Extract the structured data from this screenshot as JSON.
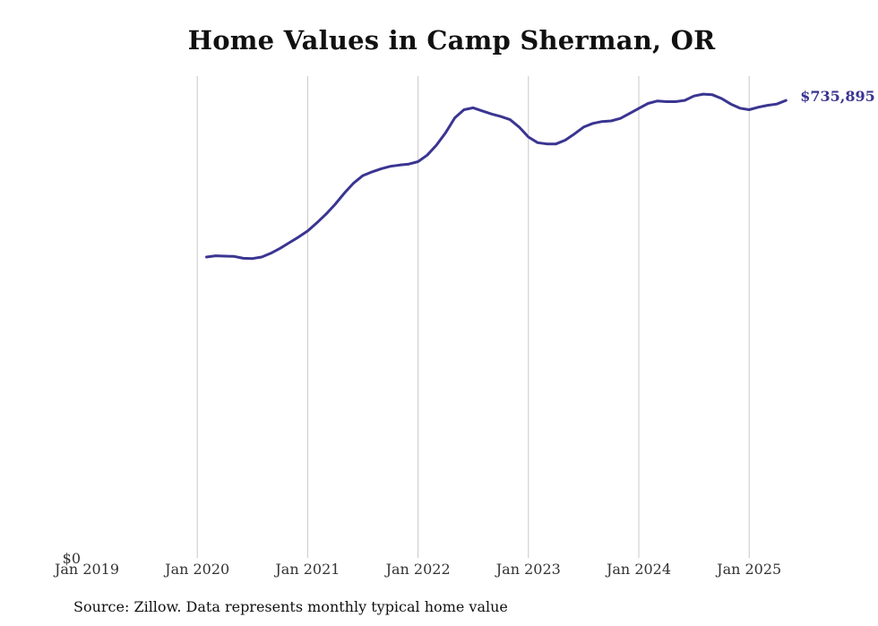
{
  "chart_data": {
    "type": "line",
    "title": "Home Values in Camp Sherman, OR",
    "xlabel": "",
    "ylabel": "",
    "x_ticks": [
      "Jan 2019",
      "Jan 2020",
      "Jan 2021",
      "Jan 2022",
      "Jan 2023",
      "Jan 2024",
      "Jan 2025"
    ],
    "y_ticks": [
      "$0"
    ],
    "ylim": [
      0,
      775000
    ],
    "grid": "vertical",
    "line_color": "#3a3591",
    "end_label": "$735,895",
    "series": [
      {
        "x": [
          "2020-02",
          "2020-03",
          "2020-04",
          "2020-05",
          "2020-06",
          "2020-07",
          "2020-08",
          "2020-09",
          "2020-10",
          "2020-11",
          "2020-12",
          "2021-01",
          "2021-02",
          "2021-03",
          "2021-04",
          "2021-05",
          "2021-06",
          "2021-07",
          "2021-08",
          "2021-09",
          "2021-10",
          "2021-11",
          "2021-12",
          "2022-01",
          "2022-02",
          "2022-03",
          "2022-04",
          "2022-05",
          "2022-06",
          "2022-07",
          "2022-08",
          "2022-09",
          "2022-10",
          "2022-11",
          "2022-12",
          "2023-01",
          "2023-02",
          "2023-03",
          "2023-04",
          "2023-05",
          "2023-06",
          "2023-07",
          "2023-08",
          "2023-09",
          "2023-10",
          "2023-11",
          "2023-12",
          "2024-01",
          "2024-02",
          "2024-03",
          "2024-04",
          "2024-05",
          "2024-06",
          "2024-07",
          "2024-08",
          "2024-09",
          "2024-10",
          "2024-11",
          "2024-12",
          "2025-01",
          "2025-02",
          "2025-03",
          "2025-04",
          "2025-05"
        ],
        "values": [
          484000,
          486000,
          485500,
          485000,
          482000,
          481500,
          484000,
          490000,
          498000,
          507000,
          516000,
          526000,
          539000,
          553000,
          569000,
          587000,
          603000,
          615000,
          621000,
          626000,
          630000,
          632000,
          633500,
          637500,
          648000,
          664000,
          684000,
          708000,
          721000,
          724000,
          719000,
          714000,
          710000,
          705000,
          693000,
          677000,
          668000,
          666000,
          666000,
          672000,
          682000,
          693000,
          699000,
          702000,
          703000,
          707000,
          715000,
          723000,
          731000,
          735000,
          734000,
          734000,
          736000,
          743000,
          746000,
          745000,
          739000,
          730000,
          723500,
          721000,
          725000,
          728000,
          730000,
          735895
        ]
      }
    ]
  },
  "source": "Source: Zillow. Data represents monthly typical home value"
}
